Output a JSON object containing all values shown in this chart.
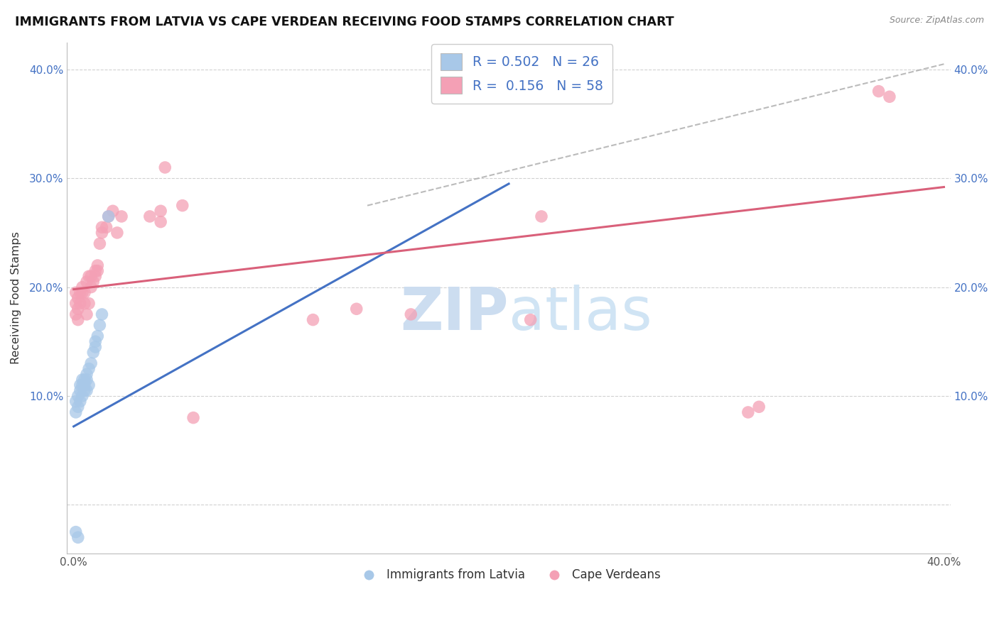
{
  "title": "IMMIGRANTS FROM LATVIA VS CAPE VERDEAN RECEIVING FOOD STAMPS CORRELATION CHART",
  "source": "Source: ZipAtlas.com",
  "ylabel": "Receiving Food Stamps",
  "xlim": [
    -0.003,
    0.403
  ],
  "ylim": [
    -0.045,
    0.425
  ],
  "xticks": [
    0.0,
    0.05,
    0.1,
    0.15,
    0.2,
    0.25,
    0.3,
    0.35,
    0.4
  ],
  "yticks": [
    0.0,
    0.1,
    0.2,
    0.3,
    0.4
  ],
  "legend_label1": "Immigrants from Latvia",
  "legend_label2": "Cape Verdeans",
  "blue_color": "#a8c8e8",
  "pink_color": "#f4a0b5",
  "blue_line_color": "#4472c4",
  "pink_line_color": "#d9607a",
  "dash_color": "#aaaaaa",
  "watermark_color": "#ccddf0",
  "blue_line_x0": 0.0,
  "blue_line_y0": 0.072,
  "blue_line_x1": 0.2,
  "blue_line_y1": 0.295,
  "pink_line_x0": 0.0,
  "pink_line_x1": 0.4,
  "pink_line_y0": 0.198,
  "pink_line_y1": 0.292,
  "dash_line_x0": 0.135,
  "dash_line_y0": 0.275,
  "dash_line_x1": 0.4,
  "dash_line_y1": 0.405,
  "latvia_x": [
    0.001,
    0.001,
    0.002,
    0.002,
    0.003,
    0.003,
    0.003,
    0.004,
    0.004,
    0.004,
    0.005,
    0.005,
    0.005,
    0.006,
    0.006,
    0.006,
    0.007,
    0.007,
    0.008,
    0.009,
    0.01,
    0.01,
    0.011,
    0.012,
    0.013,
    0.016,
    0.001,
    0.002
  ],
  "latvia_y": [
    0.085,
    0.095,
    0.09,
    0.1,
    0.095,
    0.105,
    0.11,
    0.1,
    0.11,
    0.115,
    0.105,
    0.11,
    0.115,
    0.105,
    0.115,
    0.12,
    0.11,
    0.125,
    0.13,
    0.14,
    0.145,
    0.15,
    0.155,
    0.165,
    0.175,
    0.265,
    -0.025,
    -0.03
  ],
  "cape_x": [
    0.001,
    0.001,
    0.001,
    0.002,
    0.002,
    0.002,
    0.003,
    0.003,
    0.004,
    0.004,
    0.005,
    0.005,
    0.006,
    0.006,
    0.007,
    0.007,
    0.008,
    0.008,
    0.009,
    0.01,
    0.01,
    0.011,
    0.011,
    0.012,
    0.013,
    0.013,
    0.015,
    0.016,
    0.018,
    0.02,
    0.022,
    0.035,
    0.04,
    0.04,
    0.042,
    0.05,
    0.055,
    0.11,
    0.13,
    0.155,
    0.21,
    0.215,
    0.31,
    0.315,
    0.37,
    0.375
  ],
  "cape_y": [
    0.185,
    0.195,
    0.175,
    0.19,
    0.17,
    0.18,
    0.195,
    0.185,
    0.195,
    0.2,
    0.185,
    0.195,
    0.205,
    0.175,
    0.21,
    0.185,
    0.2,
    0.21,
    0.205,
    0.215,
    0.21,
    0.22,
    0.215,
    0.24,
    0.255,
    0.25,
    0.255,
    0.265,
    0.27,
    0.25,
    0.265,
    0.265,
    0.26,
    0.27,
    0.31,
    0.275,
    0.08,
    0.17,
    0.18,
    0.175,
    0.17,
    0.265,
    0.085,
    0.09,
    0.38,
    0.375
  ]
}
